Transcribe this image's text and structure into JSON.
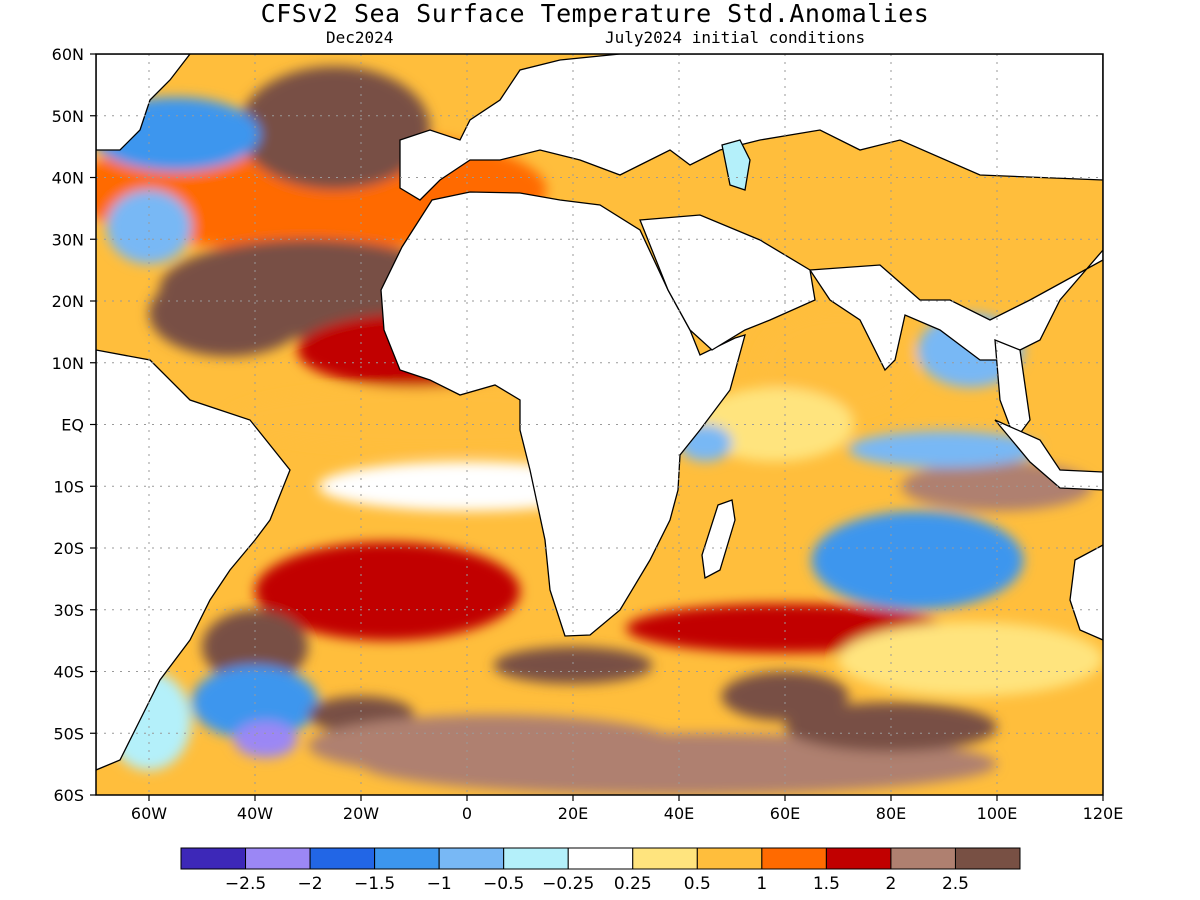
{
  "title": "CFSv2 Sea Surface Temperature Std.Anomalies",
  "subtitle_left": "Dec2024",
  "subtitle_right": "July2024 initial conditions",
  "colors": {
    "land": "#ffffff",
    "coast": "#000000",
    "grid": "#9a9a9a",
    "frame": "#000000"
  },
  "chart_data": {
    "type": "heatmap",
    "title": "CFSv2 Sea Surface Temperature Std.Anomalies",
    "region": "Atlantic and Indian Oceans",
    "lon_range": [
      -70,
      120
    ],
    "lat_range": [
      -60,
      60
    ],
    "x_ticks": [
      {
        "value": -60,
        "label": "60W"
      },
      {
        "value": -40,
        "label": "40W"
      },
      {
        "value": -20,
        "label": "20W"
      },
      {
        "value": 0,
        "label": "0"
      },
      {
        "value": 20,
        "label": "20E"
      },
      {
        "value": 40,
        "label": "40E"
      },
      {
        "value": 60,
        "label": "60E"
      },
      {
        "value": 80,
        "label": "80E"
      },
      {
        "value": 100,
        "label": "100E"
      },
      {
        "value": 120,
        "label": "120E"
      }
    ],
    "y_ticks": [
      {
        "value": 60,
        "label": "60N"
      },
      {
        "value": 50,
        "label": "50N"
      },
      {
        "value": 40,
        "label": "40N"
      },
      {
        "value": 30,
        "label": "30N"
      },
      {
        "value": 20,
        "label": "20N"
      },
      {
        "value": 10,
        "label": "10N"
      },
      {
        "value": 0,
        "label": "EQ"
      },
      {
        "value": -10,
        "label": "10S"
      },
      {
        "value": -20,
        "label": "20S"
      },
      {
        "value": -30,
        "label": "30S"
      },
      {
        "value": -40,
        "label": "40S"
      },
      {
        "value": -50,
        "label": "50S"
      },
      {
        "value": -60,
        "label": "60S"
      }
    ],
    "grid": true,
    "colorbar": {
      "colors": [
        "#3d28b8",
        "#9b87f5",
        "#2266e6",
        "#3c96ee",
        "#78b8f5",
        "#b4f0fa",
        "#ffffff",
        "#ffe47e",
        "#ffbe3c",
        "#ff6a00",
        "#c10000",
        "#af8070",
        "#785044"
      ],
      "labels": [
        "−2.5",
        "−2",
        "−1.5",
        "−1",
        "−0.5",
        "−0.25",
        "0.25",
        "0.5",
        "1",
        "1.5",
        "2",
        "2.5"
      ]
    },
    "anomaly_blobs": [
      {
        "lon": -30,
        "lat": 38,
        "rx": 45,
        "ry": 10,
        "v": 1.4
      },
      {
        "lon": -30,
        "lat": 22,
        "rx": 28,
        "ry": 8,
        "v": 2.8
      },
      {
        "lon": -45,
        "lat": 18,
        "rx": 15,
        "ry": 7,
        "v": 2.6
      },
      {
        "lon": -25,
        "lat": 48,
        "rx": 18,
        "ry": 10,
        "v": 2.7
      },
      {
        "lon": -55,
        "lat": 47,
        "rx": 16,
        "ry": 6,
        "v": -1.2
      },
      {
        "lon": -60,
        "lat": 32,
        "rx": 8,
        "ry": 6,
        "v": -0.6
      },
      {
        "lon": -10,
        "lat": 12,
        "rx": 22,
        "ry": 6,
        "v": 1.6
      },
      {
        "lon": -5,
        "lat": 1,
        "rx": 40,
        "ry": 5,
        "v": 0.6
      },
      {
        "lon": 0,
        "lat": -10,
        "rx": 28,
        "ry": 4,
        "v": 0.1
      },
      {
        "lon": -15,
        "lat": -27,
        "rx": 25,
        "ry": 8,
        "v": 1.7
      },
      {
        "lon": -40,
        "lat": -36,
        "rx": 10,
        "ry": 6,
        "v": 2.6
      },
      {
        "lon": -40,
        "lat": -45,
        "rx": 12,
        "ry": 6,
        "v": -1.4
      },
      {
        "lon": -38,
        "lat": -51,
        "rx": 6,
        "ry": 3,
        "v": -2.4
      },
      {
        "lon": -60,
        "lat": -48,
        "rx": 8,
        "ry": 8,
        "v": -0.4
      },
      {
        "lon": -20,
        "lat": -47,
        "rx": 10,
        "ry": 3,
        "v": 2.7
      },
      {
        "lon": 5,
        "lat": -52,
        "rx": 35,
        "ry": 5,
        "v": 2.1
      },
      {
        "lon": 40,
        "lat": -55,
        "rx": 60,
        "ry": 5,
        "v": 2.2
      },
      {
        "lon": 20,
        "lat": -39,
        "rx": 15,
        "ry": 3,
        "v": 2.7
      },
      {
        "lon": 60,
        "lat": -33,
        "rx": 30,
        "ry": 4,
        "v": 1.7
      },
      {
        "lon": 60,
        "lat": -44,
        "rx": 12,
        "ry": 4,
        "v": 2.7
      },
      {
        "lon": 80,
        "lat": -49,
        "rx": 20,
        "ry": 4,
        "v": 2.7
      },
      {
        "lon": 100,
        "lat": -10,
        "rx": 18,
        "ry": 4,
        "v": 2.4
      },
      {
        "lon": 85,
        "lat": -22,
        "rx": 20,
        "ry": 8,
        "v": -1.0
      },
      {
        "lon": 90,
        "lat": -4,
        "rx": 18,
        "ry": 3,
        "v": -0.5
      },
      {
        "lon": 95,
        "lat": 12,
        "rx": 10,
        "ry": 6,
        "v": -0.9
      },
      {
        "lon": 70,
        "lat": 10,
        "rx": 15,
        "ry": 8,
        "v": 1.0
      },
      {
        "lon": 58,
        "lat": 0,
        "rx": 15,
        "ry": 6,
        "v": 0.4
      },
      {
        "lon": 45,
        "lat": -3,
        "rx": 5,
        "ry": 3,
        "v": -0.8
      },
      {
        "lon": 95,
        "lat": -38,
        "rx": 25,
        "ry": 6,
        "v": 0.3
      }
    ]
  }
}
